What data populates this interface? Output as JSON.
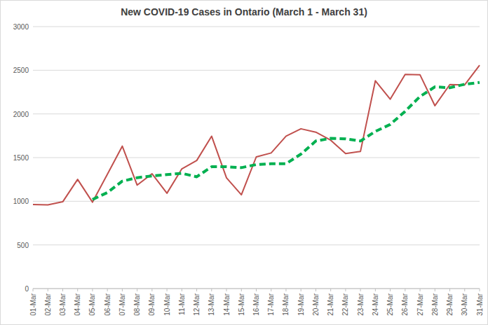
{
  "chart_data": {
    "type": "line",
    "title": "New COVID-19 Cases in Ontario (March 1 - March 31)",
    "categories": [
      "01-Mar",
      "02-Mar",
      "03-Mar",
      "04-Mar",
      "05-Mar",
      "06-Mar",
      "07-Mar",
      "08-Mar",
      "09-Mar",
      "10-Mar",
      "11-Mar",
      "12-Mar",
      "13-Mar",
      "14-Mar",
      "15-Mar",
      "16-Mar",
      "17-Mar",
      "18-Mar",
      "19-Mar",
      "20-Mar",
      "21-Mar",
      "22-Mar",
      "23-Mar",
      "24-Mar",
      "25-Mar",
      "26-Mar",
      "27-Mar",
      "28-Mar",
      "29-Mar",
      "30-Mar",
      "31-Mar"
    ],
    "series": [
      {
        "color": "#c0504d",
        "line_style": "solid",
        "values": [
          963,
          958,
          994,
          1250,
          990,
          1310,
          1631,
          1185,
          1315,
          1092,
          1371,
          1467,
          1745,
          1268,
          1074,
          1508,
          1553,
          1745,
          1830,
          1791,
          1699,
          1546,
          1571,
          2380,
          2169,
          2453,
          2448,
          2094,
          2336,
          2333,
          2557
        ]
      },
      {
        "color": "#00b050",
        "line_style": "dashed",
        "values": [
          null,
          null,
          null,
          null,
          1020,
          1100,
          1230,
          1270,
          1290,
          1305,
          1320,
          1280,
          1395,
          1395,
          1385,
          1420,
          1430,
          1430,
          1540,
          1690,
          1720,
          1715,
          1690,
          1800,
          1880,
          2030,
          2200,
          2310,
          2300,
          2340,
          2360
        ]
      }
    ],
    "ylim": [
      0,
      3000
    ],
    "yticks": [
      0,
      500,
      1000,
      1500,
      2000,
      2500,
      3000
    ],
    "grid": true
  }
}
